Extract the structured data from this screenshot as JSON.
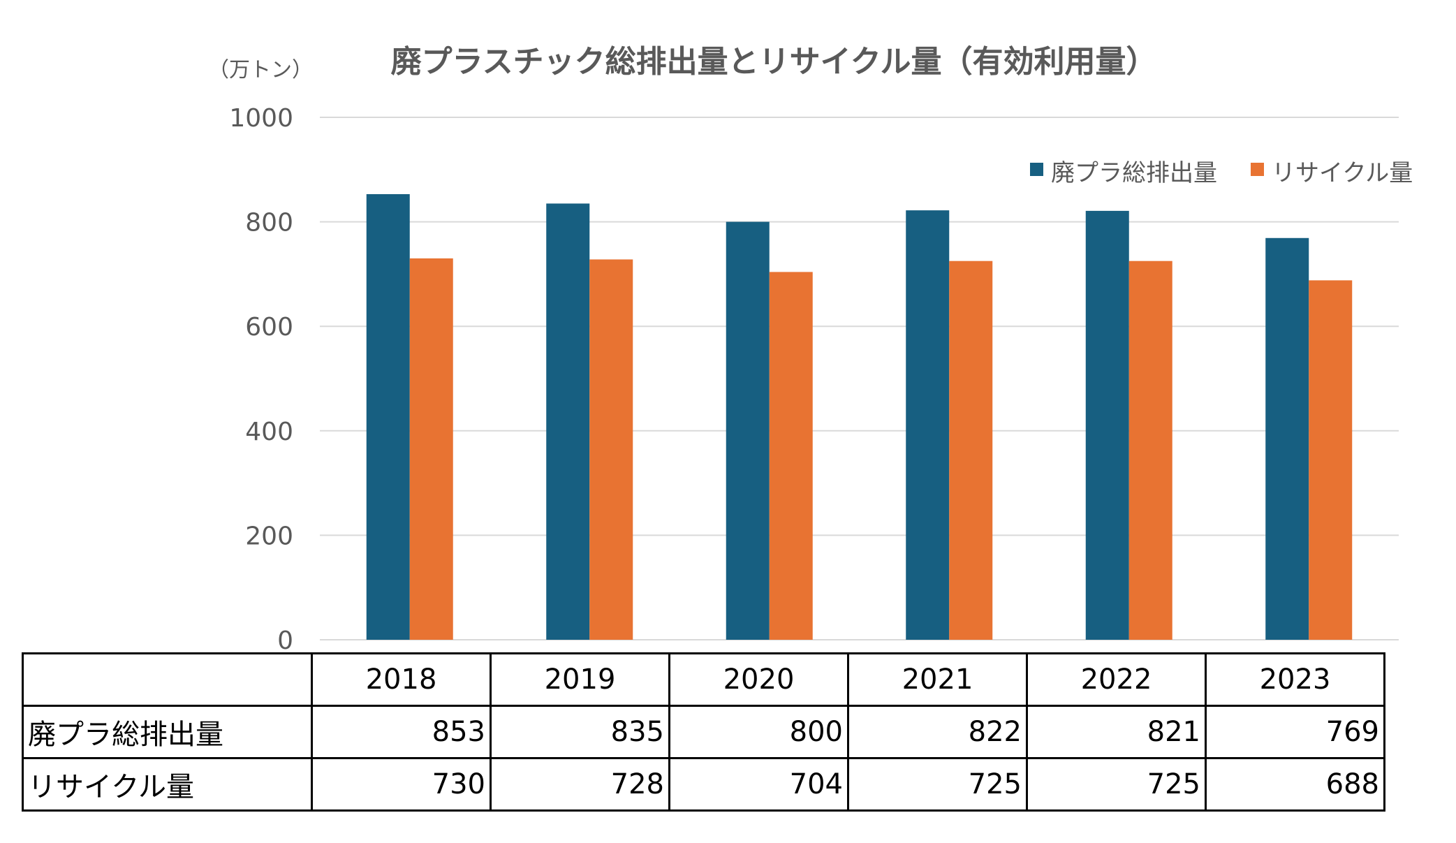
{
  "chart_data": {
    "type": "bar",
    "title": "廃プラスチック総排出量とリサイクル量（有効利用量）",
    "unit_label": "（万トン）",
    "xlabel": "",
    "ylabel": "",
    "ylim": [
      0,
      1000
    ],
    "yticks": [
      0,
      200,
      400,
      600,
      800,
      1000
    ],
    "categories": [
      "2018",
      "2019",
      "2020",
      "2021",
      "2022",
      "2023"
    ],
    "series": [
      {
        "name": "廃プラ総排出量",
        "color": "#175f81",
        "values": [
          853,
          835,
          800,
          822,
          821,
          769
        ]
      },
      {
        "name": "リサイクル量",
        "color": "#e87332",
        "values": [
          730,
          728,
          704,
          725,
          725,
          688
        ]
      }
    ],
    "legend_position": "top-right",
    "grid": true
  },
  "table": {
    "corner": "",
    "rows": [
      {
        "label": "廃プラ総排出量",
        "values": [
          "853",
          "835",
          "800",
          "822",
          "821",
          "769"
        ]
      },
      {
        "label": "リサイクル量",
        "values": [
          "730",
          "728",
          "704",
          "725",
          "725",
          "688"
        ]
      }
    ]
  }
}
